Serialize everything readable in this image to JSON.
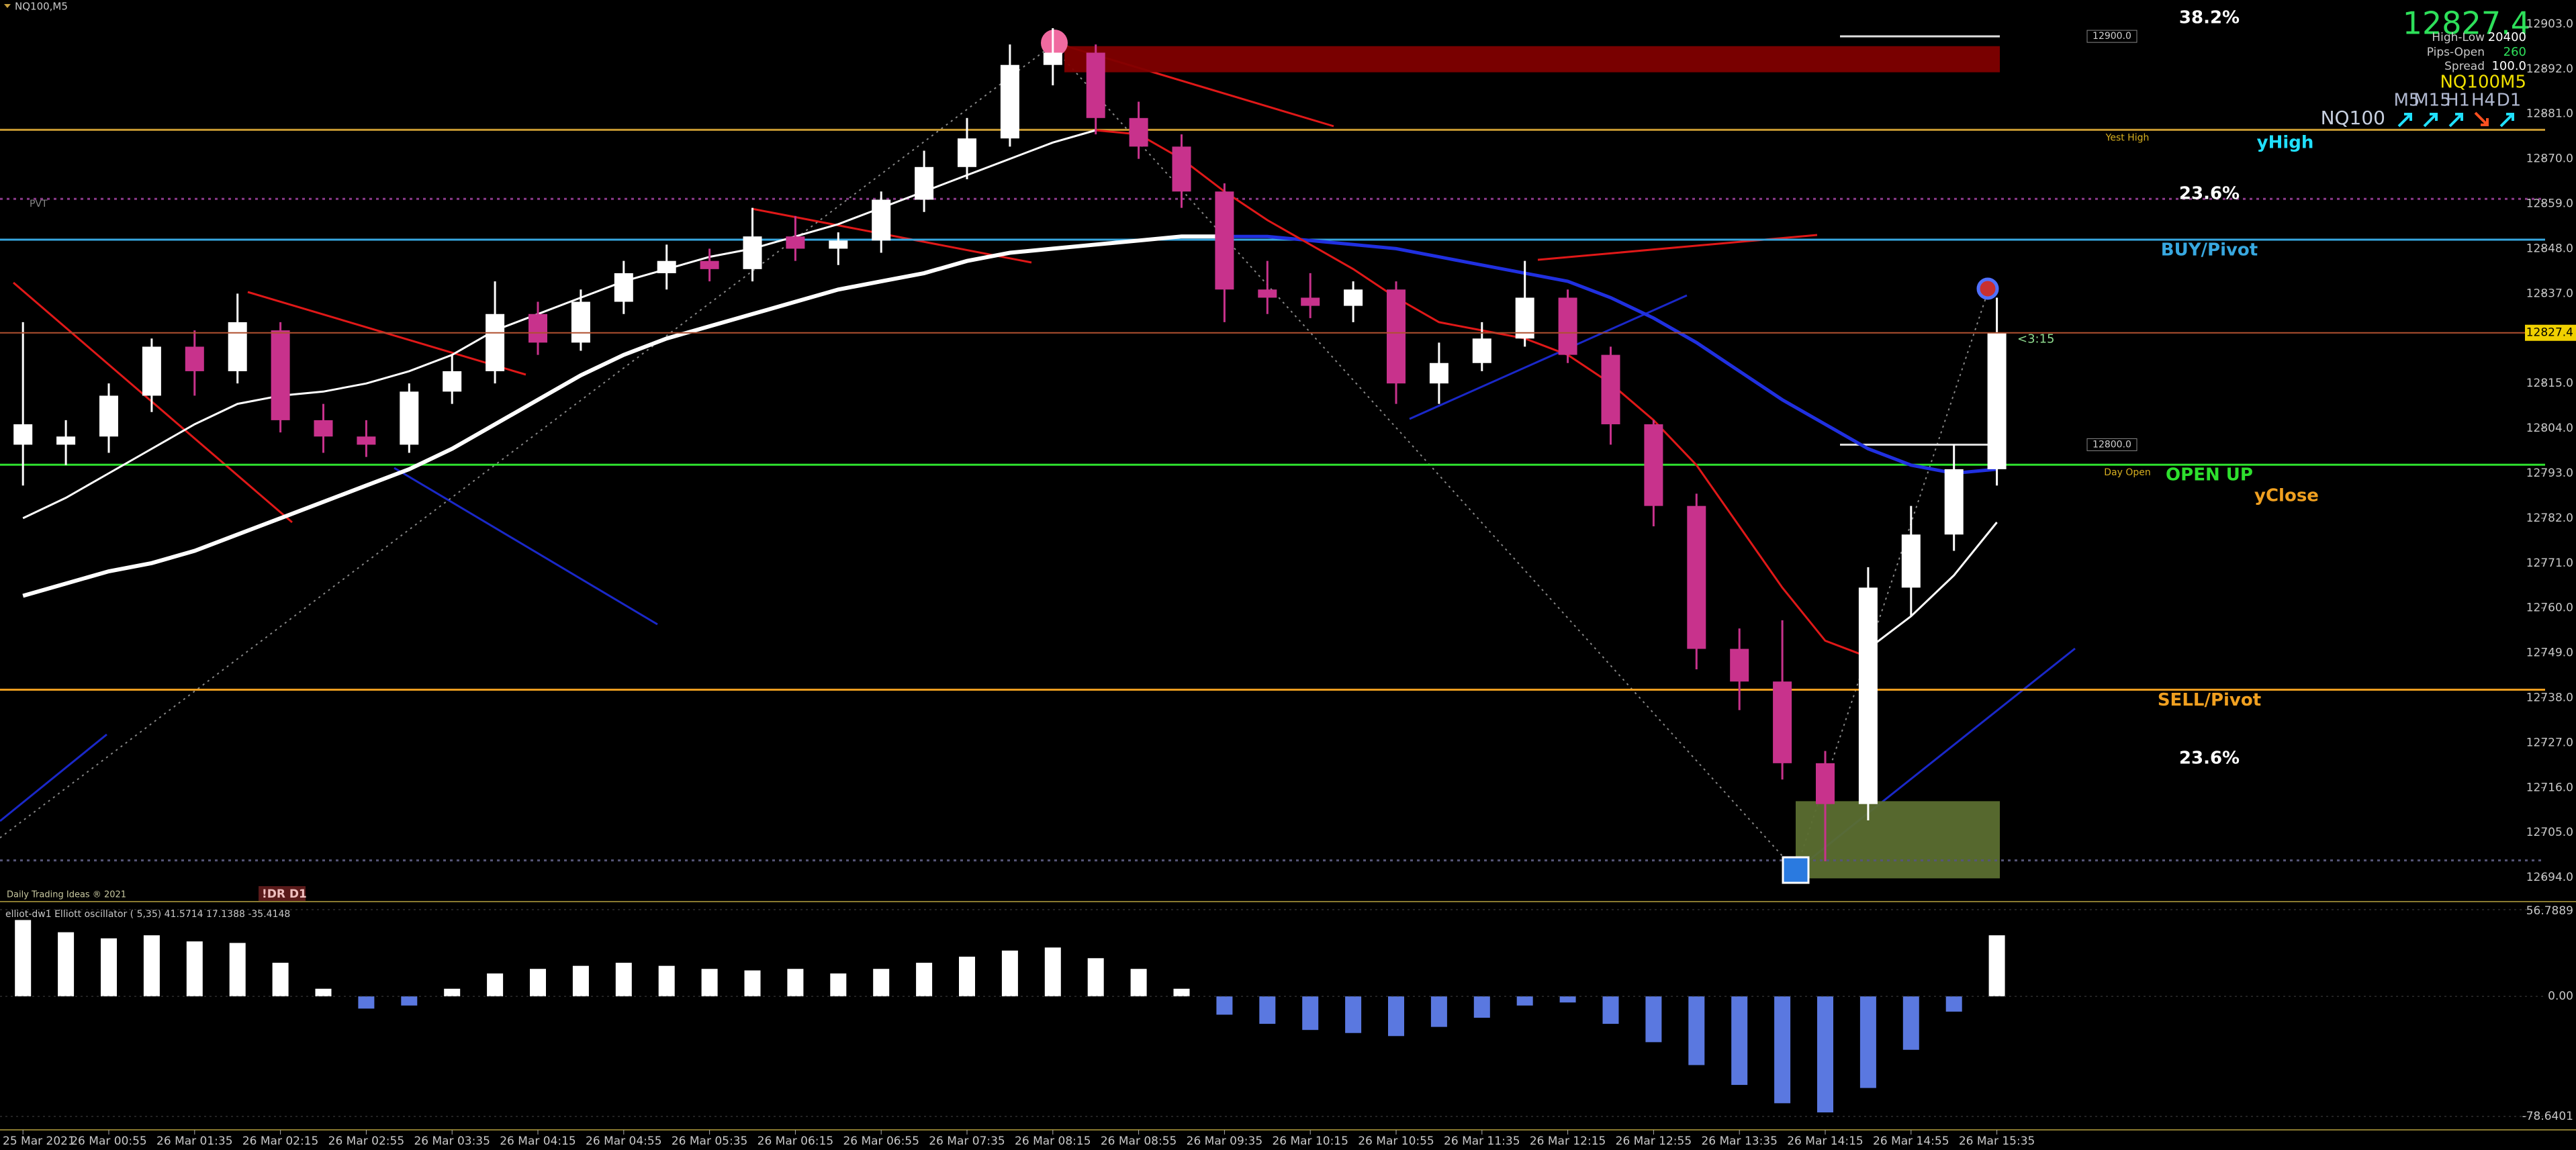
{
  "chart_data": {
    "type": "candlestick",
    "symbol": "NQ100,M5",
    "categories": [
      "25 Mar 2021",
      null,
      "26 Mar 00:55",
      null,
      "26 Mar 01:35",
      null,
      "26 Mar 02:15",
      null,
      "26 Mar 02:55",
      null,
      "26 Mar 03:35",
      null,
      "26 Mar 04:15",
      null,
      "26 Mar 04:55",
      null,
      "26 Mar 05:35",
      null,
      "26 Mar 06:15",
      null,
      "26 Mar 06:55",
      null,
      "26 Mar 07:35",
      null,
      "26 Mar 08:15",
      null,
      "26 Mar 08:55",
      null,
      "26 Mar 09:35",
      null,
      "26 Mar 10:15",
      null,
      "26 Mar 10:55",
      null,
      "26 Mar 11:35",
      null,
      "26 Mar 12:15",
      null,
      "26 Mar 12:55",
      null,
      "26 Mar 13:35",
      null,
      "26 Mar 14:15",
      null,
      "26 Mar 14:55",
      null,
      "26 Mar 15:35"
    ],
    "open": [
      12800,
      12800,
      12802,
      12812,
      12824,
      12818,
      12828,
      12806,
      12802,
      12800,
      12813,
      12818,
      12832,
      12825,
      12835,
      12842,
      12845,
      12843,
      12851,
      12848,
      12850,
      12860,
      12868,
      12875,
      12893,
      12896,
      12880,
      12873,
      12862,
      12838,
      12836,
      12834,
      12838,
      12815,
      12820,
      12826,
      12836,
      12822,
      12805,
      12785,
      12750,
      12742,
      12722,
      12712,
      12765,
      12778,
      12794
    ],
    "high": [
      12830,
      12806,
      12815,
      12826,
      12828,
      12837,
      12830,
      12810,
      12806,
      12815,
      12822,
      12840,
      12835,
      12838,
      12845,
      12849,
      12848,
      12858,
      12856,
      12852,
      12862,
      12872,
      12880,
      12898,
      12902,
      12898,
      12884,
      12876,
      12864,
      12845,
      12842,
      12840,
      12840,
      12825,
      12830,
      12845,
      12838,
      12824,
      12806,
      12788,
      12755,
      12757,
      12725,
      12770,
      12785,
      12800,
      12836
    ],
    "low": [
      12790,
      12795,
      12798,
      12808,
      12812,
      12815,
      12803,
      12798,
      12797,
      12798,
      12810,
      12815,
      12822,
      12823,
      12832,
      12838,
      12840,
      12840,
      12845,
      12844,
      12847,
      12857,
      12865,
      12873,
      12888,
      12876,
      12870,
      12858,
      12830,
      12832,
      12831,
      12830,
      12810,
      12810,
      12818,
      12824,
      12820,
      12800,
      12780,
      12745,
      12735,
      12718,
      12698,
      12708,
      12758,
      12774,
      12790
    ],
    "close": [
      12805,
      12802,
      12812,
      12824,
      12818,
      12830,
      12806,
      12802,
      12800,
      12813,
      12818,
      12832,
      12825,
      12835,
      12842,
      12845,
      12843,
      12851,
      12848,
      12850,
      12860,
      12868,
      12875,
      12893,
      12896,
      12880,
      12873,
      12862,
      12838,
      12836,
      12834,
      12838,
      12815,
      12820,
      12826,
      12836,
      12822,
      12805,
      12785,
      12750,
      12742,
      12722,
      12712,
      12765,
      12778,
      12794,
      12827.4
    ],
    "colors": {
      "up": "#ffffff",
      "down": "#c8328c"
    },
    "lines": [
      {
        "color": "#ffffff",
        "values": [
          12763,
          12766,
          12769,
          12771,
          12774,
          12778,
          12782,
          12786,
          12790,
          12794,
          12799,
          12805,
          12811,
          12817,
          12822,
          12826,
          12829,
          12832,
          12835,
          12838,
          12840,
          12842,
          12845,
          12847,
          12848,
          12849,
          12850,
          12851,
          12851,
          null,
          null,
          null,
          null,
          null,
          null,
          null,
          null,
          null,
          null,
          null,
          null,
          null,
          null,
          null,
          null,
          null,
          null
        ]
      },
      {
        "color": "#2030e0",
        "values": [
          null,
          null,
          null,
          null,
          null,
          null,
          null,
          null,
          null,
          null,
          null,
          null,
          null,
          null,
          null,
          null,
          null,
          null,
          null,
          null,
          null,
          null,
          null,
          null,
          null,
          null,
          null,
          null,
          12851,
          12851,
          12850,
          12849,
          12848,
          12846,
          12844,
          12842,
          12840,
          12836,
          12831,
          12825,
          12818,
          12811,
          12805,
          12799,
          12795,
          12793,
          12794
        ]
      },
      {
        "color": "#ffffff",
        "values": [
          12782,
          12787,
          12793,
          12799,
          12805,
          12810,
          12812,
          12813,
          12815,
          12818,
          12822,
          12828,
          12832,
          12836,
          12840,
          12843,
          12846,
          12848,
          12851,
          12854,
          12858,
          12862,
          12866,
          12870,
          12874,
          12877,
          null,
          null,
          null,
          null,
          null,
          null,
          null,
          null,
          null,
          null,
          null,
          null,
          null,
          null,
          null,
          null,
          null,
          12750,
          12758,
          12768,
          12781
        ]
      },
      {
        "color": "#e01818",
        "values": [
          null,
          null,
          null,
          null,
          null,
          null,
          null,
          null,
          null,
          null,
          null,
          null,
          null,
          null,
          null,
          null,
          null,
          null,
          null,
          null,
          null,
          null,
          null,
          null,
          null,
          12877,
          12876,
          12870,
          12862,
          12855,
          12849,
          12843,
          12836,
          12830,
          12828,
          12826,
          12822,
          12815,
          12806,
          12795,
          12780,
          12765,
          12752,
          12748,
          null,
          null,
          null
        ]
      }
    ],
    "ylim": [
      12688.6,
      12908.9
    ],
    "yticks": [
      {
        "value": 12903,
        "label": "12903.0"
      },
      {
        "value": 12892,
        "label": "12892.0"
      },
      {
        "value": 12881,
        "label": "12881.0"
      },
      {
        "value": 12870,
        "label": "12870.0"
      },
      {
        "value": 12859,
        "label": "12859.0"
      },
      {
        "value": 12848,
        "label": "12848.0"
      },
      {
        "value": 12837,
        "label": "12837.0"
      },
      {
        "value": 12815,
        "label": "12815.0"
      },
      {
        "value": 12804,
        "label": "12804.0"
      },
      {
        "value": 12793,
        "label": "12793.0"
      },
      {
        "value": 12782,
        "label": "12782.0"
      },
      {
        "value": 12771,
        "label": "12771.0"
      },
      {
        "value": 12760,
        "label": "12760.0"
      },
      {
        "value": 12749,
        "label": "12749.0"
      },
      {
        "value": 12738,
        "label": "12738.0"
      },
      {
        "value": 12727,
        "label": "12727.0"
      },
      {
        "value": 12716,
        "label": "12716.0"
      },
      {
        "value": 12705,
        "label": "12705.0"
      },
      {
        "value": 12694,
        "label": "12694.0"
      }
    ],
    "last_price": 12827.4,
    "countdown": "<3:15",
    "levels": [
      {
        "value": 12877.1,
        "color": "#c89a32",
        "tag": "Yest High"
      },
      {
        "value": 12860.2,
        "color": "#8a3a8a",
        "dash": true,
        "left_label": "PVT"
      },
      {
        "value": 12850.2,
        "color": "#38a8e0",
        "label": "BUY/Pivot"
      },
      {
        "value": 12795.1,
        "color": "#2ee02e",
        "label": "OPEN UP",
        "tag": "Day Open"
      },
      {
        "value": 12740,
        "color": "#f0a020",
        "label": "SELL/Pivot"
      },
      {
        "value": 12698.2,
        "color": "#555577",
        "dash": true
      }
    ],
    "round_levels": [
      {
        "value": 12900,
        "label": "12900.0"
      },
      {
        "value": 12800,
        "label": "12800.0"
      }
    ],
    "zones": [
      {
        "from": 12891.2,
        "to": 12897.6,
        "color": "#800000"
      },
      {
        "from": 12693.8,
        "to": 12712.7,
        "color": "#5b6e30"
      }
    ],
    "oscillator": {
      "label": "elliot-dw1 Elliott oscillator ( 5,35) 41.5714 17.1388 -35.4148",
      "values": [
        50,
        42,
        38,
        40,
        36,
        35,
        22,
        5,
        -8,
        -6,
        5,
        15,
        18,
        20,
        22,
        20,
        18,
        17,
        18,
        15,
        18,
        22,
        26,
        30,
        32,
        25,
        18,
        5,
        -12,
        -18,
        -22,
        -24,
        -26,
        -20,
        -14,
        -6,
        -4,
        -18,
        -30,
        -45,
        -58,
        -70,
        -76,
        -60,
        -35,
        -10,
        40
      ],
      "colors": {
        "up": "#ffffff",
        "down": "#5a78e0"
      },
      "ylim": [
        -78.6401,
        56.7889
      ],
      "yticks": [
        56.7889,
        {
          "value": 0,
          "label": "0.00"
        },
        -78.6401
      ]
    }
  },
  "annotations": {
    "fib_top": "38.2%",
    "fib_mid": "23.6%",
    "fib_low": "23.6%",
    "yhigh": "yHigh",
    "yclose": "yClose"
  },
  "info": {
    "high_low_label": "High-Low",
    "high_low": "20400",
    "pips_open_label": "Pips-Open",
    "pips_open": "260",
    "spread_label": "Spread",
    "spread": "100.0",
    "symbol_tf": "NQ100M5",
    "symbol": "NQ100",
    "timeframes": [
      "M5",
      "M15",
      "H1",
      "H4",
      "D1"
    ]
  },
  "footer": {
    "copyright": "Daily Trading Ideas ® 2021",
    "badge": "!DR D1"
  }
}
